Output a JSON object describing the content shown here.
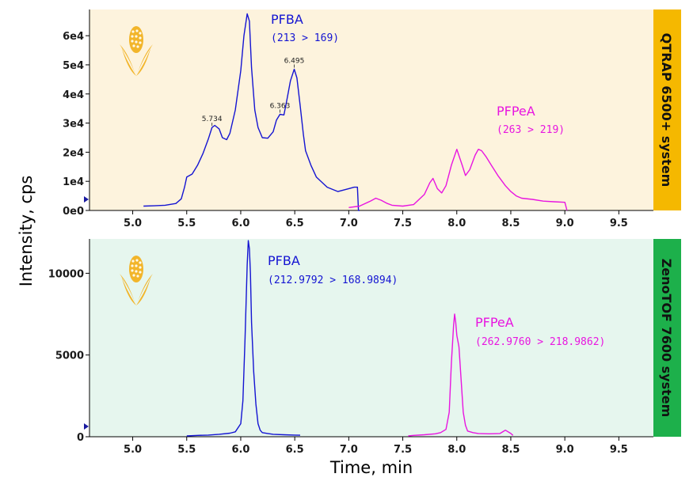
{
  "colors": {
    "pfba": "#1414d2",
    "pfpea": "#e815e0",
    "top_background": "#fdf3dd",
    "bottom_background": "#e6f6ee",
    "top_strip": "#f5b800",
    "bottom_strip": "#1db04b",
    "corn": "#f2b52a"
  },
  "icons": [
    "corn-icon",
    "arrow-marker-icon"
  ],
  "axis": {
    "ylabel": "Intensity, cps",
    "xlabel": "Time, min"
  },
  "chart_data": [
    {
      "type": "line",
      "panel": "top",
      "instrument_label": "QTRAP 6500+ system",
      "xlabel": "Time, min",
      "ylabel": "Intensity, cps",
      "xlim": [
        4.6,
        9.82
      ],
      "ylim": [
        0,
        69000
      ],
      "x_ticks": [
        5.0,
        5.5,
        6.0,
        6.5,
        7.0,
        7.5,
        8.0,
        8.5,
        9.0,
        9.5
      ],
      "x_tick_labels": [
        "5.0",
        "5.5",
        "6.0",
        "6.5",
        "7.0",
        "7.5",
        "8.0",
        "8.5",
        "9.0",
        "9.5"
      ],
      "y_ticks": [
        0,
        10000,
        20000,
        30000,
        40000,
        50000,
        60000
      ],
      "y_tick_labels": [
        "0e0",
        "1e4",
        "2e4",
        "3e4",
        "4e4",
        "5e4",
        "6e4"
      ],
      "grid": false,
      "series": [
        {
          "name": "PFBA",
          "transition": "(213 > 169)",
          "color": "#1414d2",
          "x": [
            5.1,
            5.2,
            5.3,
            5.4,
            5.45,
            5.48,
            5.5,
            5.55,
            5.6,
            5.65,
            5.7,
            5.734,
            5.76,
            5.8,
            5.83,
            5.87,
            5.9,
            5.95,
            6.0,
            6.03,
            6.06,
            6.08,
            6.1,
            6.13,
            6.16,
            6.2,
            6.25,
            6.3,
            6.33,
            6.363,
            6.4,
            6.43,
            6.46,
            6.495,
            6.52,
            6.55,
            6.58,
            6.6,
            6.65,
            6.7,
            6.8,
            6.9,
            7.0,
            7.05,
            7.08,
            7.09,
            7.1
          ],
          "y": [
            1500,
            1600,
            1800,
            2400,
            4000,
            8000,
            11500,
            12500,
            15500,
            19500,
            24500,
            28500,
            29200,
            28000,
            25000,
            24300,
            26500,
            34500,
            48000,
            60000,
            67500,
            65000,
            49000,
            34500,
            28500,
            25000,
            24800,
            27000,
            31000,
            33000,
            32800,
            38500,
            44500,
            48500,
            45500,
            36000,
            26000,
            20500,
            15500,
            11500,
            8000,
            6500,
            7500,
            8000,
            8000,
            0,
            0
          ]
        },
        {
          "name": "PFPeA",
          "transition": "(263 > 219)",
          "color": "#e815e0",
          "x": [
            7.0,
            7.1,
            7.2,
            7.25,
            7.3,
            7.35,
            7.4,
            7.5,
            7.6,
            7.7,
            7.75,
            7.78,
            7.82,
            7.86,
            7.9,
            7.95,
            8.0,
            8.05,
            8.08,
            8.12,
            8.17,
            8.2,
            8.23,
            8.27,
            8.32,
            8.38,
            8.45,
            8.5,
            8.55,
            8.6,
            8.7,
            8.8,
            8.9,
            9.0,
            9.02
          ],
          "y": [
            1000,
            1500,
            3200,
            4200,
            3500,
            2500,
            1800,
            1500,
            2000,
            5500,
            9500,
            11000,
            7500,
            6000,
            8500,
            15500,
            21000,
            15500,
            12000,
            14000,
            19000,
            21000,
            20500,
            18500,
            15500,
            12000,
            8500,
            6500,
            5000,
            4200,
            3800,
            3200,
            3000,
            2800,
            0
          ]
        }
      ],
      "annotations": [
        {
          "text": "5.734",
          "x": 5.734,
          "y": 28500
        },
        {
          "text": "6.363",
          "x": 6.363,
          "y": 33000
        },
        {
          "text": "6.495",
          "x": 6.495,
          "y": 48500
        }
      ]
    },
    {
      "type": "line",
      "panel": "bottom",
      "instrument_label": "ZenoTOF 7600 system",
      "xlabel": "Time, min",
      "ylabel": "Intensity, cps",
      "xlim": [
        4.6,
        9.82
      ],
      "ylim": [
        0,
        12100
      ],
      "x_ticks": [
        5.0,
        5.5,
        6.0,
        6.5,
        7.0,
        7.5,
        8.0,
        8.5,
        9.0,
        9.5
      ],
      "x_tick_labels": [
        "5.0",
        "5.5",
        "6.0",
        "6.5",
        "7.0",
        "7.5",
        "8.0",
        "8.5",
        "9.0",
        "9.5"
      ],
      "y_ticks": [
        0,
        5000,
        10000
      ],
      "y_tick_labels": [
        "0",
        "5000",
        "10000"
      ],
      "grid": false,
      "series": [
        {
          "name": "PFBA",
          "transition": "(212.9792 > 168.9894)",
          "color": "#1414d2",
          "x": [
            5.5,
            5.6,
            5.7,
            5.8,
            5.9,
            5.95,
            6.0,
            6.02,
            6.04,
            6.06,
            6.07,
            6.08,
            6.09,
            6.1,
            6.12,
            6.14,
            6.16,
            6.18,
            6.2,
            6.25,
            6.3,
            6.4,
            6.5,
            6.55
          ],
          "y": [
            50,
            80,
            100,
            150,
            220,
            300,
            800,
            2200,
            6000,
            10500,
            12000,
            11500,
            10000,
            7000,
            4000,
            2000,
            800,
            400,
            250,
            200,
            150,
            120,
            100,
            90
          ]
        },
        {
          "name": "PFPeA",
          "transition": "(262.9760 > 218.9862)",
          "color": "#e815e0",
          "x": [
            7.55,
            7.6,
            7.7,
            7.8,
            7.85,
            7.9,
            7.93,
            7.95,
            7.97,
            7.98,
            7.99,
            8.0,
            8.02,
            8.04,
            8.06,
            8.08,
            8.1,
            8.15,
            8.2,
            8.3,
            8.4,
            8.45,
            8.5,
            8.52
          ],
          "y": [
            50,
            80,
            120,
            180,
            250,
            450,
            1500,
            4500,
            6800,
            7500,
            7000,
            6200,
            5500,
            3500,
            1500,
            700,
            350,
            250,
            200,
            180,
            200,
            400,
            200,
            80
          ]
        }
      ],
      "annotations": []
    }
  ]
}
